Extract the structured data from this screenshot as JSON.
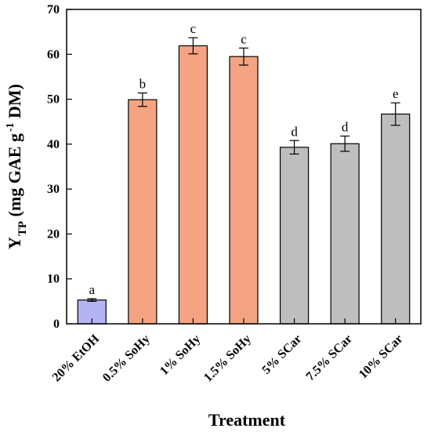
{
  "chart_data": {
    "type": "bar",
    "xlabel": "Treatment",
    "ylabel": {
      "main": "Y",
      "subscript": "TP",
      "unit_prefix": " (mg GAE g",
      "superscript": "-1",
      "unit_suffix": " DM)"
    },
    "ylim": [
      0,
      70
    ],
    "yticks": [
      0,
      10,
      20,
      30,
      40,
      50,
      60,
      70
    ],
    "grid": false,
    "categories": [
      "20% EtOH",
      "0.5% SoHy",
      "1% SoHy",
      "1.5% SoHy",
      "5% SCar",
      "7.5% SCar",
      "10% SCar"
    ],
    "values": [
      5.3,
      49.9,
      61.9,
      59.5,
      39.3,
      40.1,
      46.7
    ],
    "errors": [
      0.3,
      1.5,
      1.8,
      1.9,
      1.5,
      1.7,
      2.5
    ],
    "significance": [
      "a",
      "b",
      "c",
      "c",
      "d",
      "d",
      "e"
    ],
    "colors": [
      "#b4b4f5",
      "#f4a383",
      "#f4a383",
      "#f4a383",
      "#bebebe",
      "#bebebe",
      "#bebebe"
    ]
  }
}
